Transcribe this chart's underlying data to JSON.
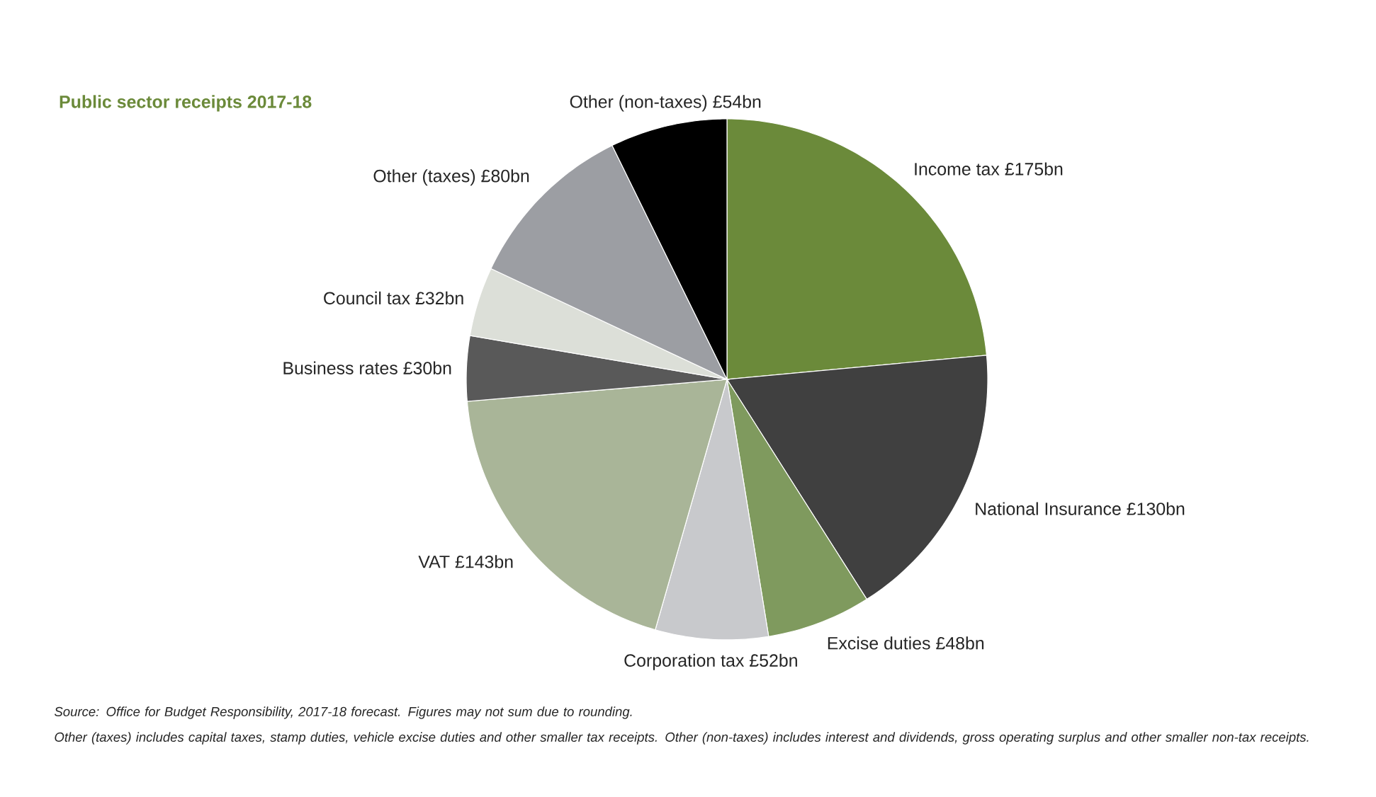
{
  "chart_data": {
    "type": "pie",
    "title": "Public sector receipts 2017-18",
    "categories": [
      "Income tax",
      "National Insurance",
      "Excise duties",
      "Corporation tax",
      "VAT",
      "Business rates",
      "Council tax",
      "Other (taxes)",
      "Other (non-taxes)"
    ],
    "values": [
      175,
      130,
      48,
      52,
      143,
      30,
      32,
      80,
      54
    ],
    "value_labels": [
      "£175bn",
      "£130bn",
      "£48bn",
      "£52bn",
      "£143bn",
      "£30bn",
      "£32bn",
      "£80bn",
      "£54bn"
    ],
    "colors": [
      "#6b8a3a",
      "#404040",
      "#7f9a5e",
      "#c8c9cc",
      "#a9b598",
      "#595959",
      "#dcdfd8",
      "#9c9ea3",
      "#000000"
    ],
    "annotations": [
      "Source: Office for Budget Responsibility, 2017-18 forecast. Figures may not sum due to rounding.",
      "Other (taxes) includes capital taxes, stamp duties, vehicle excise duties and other smaller tax receipts. Other (non-taxes) includes interest and dividends, gross operating surplus and other smaller non-tax receipts."
    ]
  }
}
